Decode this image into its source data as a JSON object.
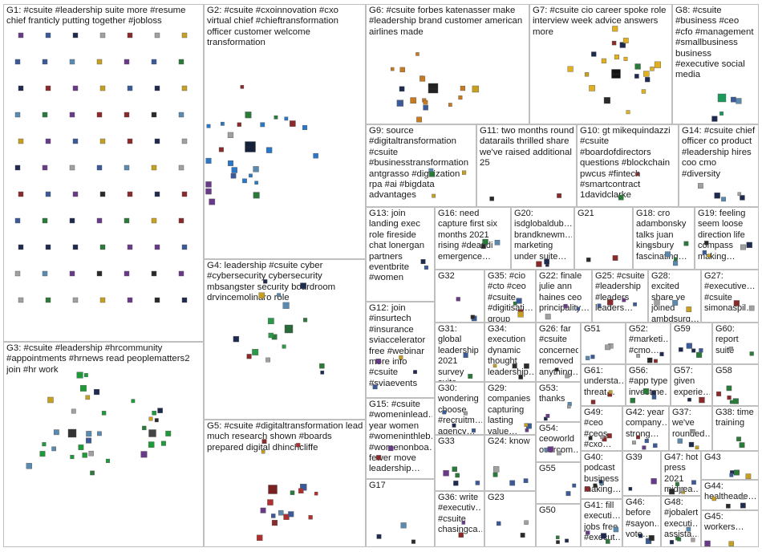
{
  "groups": [
    {
      "id": "G1",
      "label": "G1: #csuite #leadership suite more #resume chief franticly putting together #jobloss"
    },
    {
      "id": "G2",
      "label": "G2: #csuite #cxoinnovation #cxo virtual chief #chieftransformation officer customer welcome transformation"
    },
    {
      "id": "G6",
      "label": "G6: #csuite forbes katenasser make #leadership brand customer american airlines made"
    },
    {
      "id": "G7",
      "label": "G7: #csuite cio career spoke role interview week advice answers more"
    },
    {
      "id": "G8",
      "label": "G8: #csuite #business #ceo #cfo #management #smallbusiness business #executive social media"
    },
    {
      "id": "G9",
      "label": "G9: source #digitaltransformation #csuite #businesstransformation antgrasso #digitization rpa #ai #bigdata advantages"
    },
    {
      "id": "G11",
      "label": "G11: two months round datarails thrilled share we've raised additional 25"
    },
    {
      "id": "G10",
      "label": "G10: gt mikequindazzi #csuite #boardofdirectors questions #blockchain pwcus #fintech #smartcontract 1davidclarke"
    },
    {
      "id": "G14",
      "label": "G14: #csuite chief officer co product #leadership hires coo cmo #diversity"
    },
    {
      "id": "G13",
      "label": "G13: join landing exec role fireside chat lonergan partners eventbrite #women"
    },
    {
      "id": "G16",
      "label": "G16: need capture first six months 2021 rising #deandi emergence…"
    },
    {
      "id": "G20",
      "label": "G20: isdglobaldub… brandknewm… marketing under suite…"
    },
    {
      "id": "G21",
      "label": "G21"
    },
    {
      "id": "G18",
      "label": "G18: cro adambonsky talks juan kingsbury fascinating…"
    },
    {
      "id": "G19",
      "label": "G19: feeling seem loose direction life compass making…"
    },
    {
      "id": "G4",
      "label": "G4: leadership #csuite cyber #cybersecurity cybersecurity mbsangster security boardroom drvincemolinaro role"
    },
    {
      "id": "G32",
      "label": "G32"
    },
    {
      "id": "G35",
      "label": "G35: #cio #cto #ceo #csuite #digitisati… group"
    },
    {
      "id": "G22",
      "label": "G22: finale julie ann haines ceo principality…"
    },
    {
      "id": "G25",
      "label": "G25: #csuite #leadership #leaders leaders…"
    },
    {
      "id": "G28",
      "label": "G28: excited share ve joined ambdsurg…"
    },
    {
      "id": "G27",
      "label": "G27: #executive… #csuite simonaspil…"
    },
    {
      "id": "G12",
      "label": "G12: join #insurtech #insurance sviaccelerator free #webinar more info #csuite #sviaevents"
    },
    {
      "id": "G31",
      "label": "G31: global leadership 2021 survey suite…"
    },
    {
      "id": "G34",
      "label": "G34: execution dynamic thought leadership…"
    },
    {
      "id": "G26",
      "label": "G26: far #csuite concerned removed anything…"
    },
    {
      "id": "G51",
      "label": "G51"
    },
    {
      "id": "G52",
      "label": "G52: #marketi… #cmo…"
    },
    {
      "id": "G59",
      "label": "G59"
    },
    {
      "id": "G60",
      "label": "G60: report suite"
    },
    {
      "id": "G3",
      "label": "G3: #csuite #leadership #hrcommunity #appointments #hrnews read peoplematters2 join #hr work"
    },
    {
      "id": "G30",
      "label": "G30: wondering choose #recruitm… agency…"
    },
    {
      "id": "G29",
      "label": "G29: companies capturing lasting value…"
    },
    {
      "id": "G53",
      "label": "G53: thanks"
    },
    {
      "id": "G61",
      "label": "G61: understa… threat…"
    },
    {
      "id": "G56",
      "label": "G56: #app type investme…"
    },
    {
      "id": "G57",
      "label": "G57: given experie…"
    },
    {
      "id": "G58",
      "label": "G58"
    },
    {
      "id": "G15",
      "label": "G15: #csuite #womeninlead… year women #womeninthleb… #womenonboa… fewer move leadership…"
    },
    {
      "id": "G5",
      "label": "G5: #csuite #digitaltransformation lead much research shown #boards prepared digital dhinchcliffe"
    },
    {
      "id": "G33",
      "label": "G33"
    },
    {
      "id": "G24",
      "label": "G24: know"
    },
    {
      "id": "G54",
      "label": "G54: ceoworld overcom…"
    },
    {
      "id": "G49",
      "label": "G49: #ceo #ceos #cxo…"
    },
    {
      "id": "G42",
      "label": "G42: year company… strong…"
    },
    {
      "id": "G37",
      "label": "G37: we've rounded…"
    },
    {
      "id": "G38",
      "label": "G38: time training"
    },
    {
      "id": "G55",
      "label": "G55"
    },
    {
      "id": "G40",
      "label": "G40: podcast business making…"
    },
    {
      "id": "G39",
      "label": "G39"
    },
    {
      "id": "G47",
      "label": "G47: hot press 2021 midyea…"
    },
    {
      "id": "G43",
      "label": "G43"
    },
    {
      "id": "G44",
      "label": "G44: healtheade…"
    },
    {
      "id": "G17",
      "label": "G17"
    },
    {
      "id": "G36",
      "label": "G36: write #executiv… #csuite chasingca…"
    },
    {
      "id": "G23",
      "label": "G23"
    },
    {
      "id": "G50",
      "label": "G50"
    },
    {
      "id": "G41",
      "label": "G41: fill executi… jobs free #execut…"
    },
    {
      "id": "G46",
      "label": "G46: before #sayon… vote…"
    },
    {
      "id": "G48",
      "label": "G48: #jobalert executi… assista…"
    },
    {
      "id": "G45",
      "label": "G45: workers…"
    }
  ],
  "hub_labels": {
    "G2": "cxo",
    "G6": "forbes",
    "G7": "spoke"
  },
  "colors": {
    "border": "#bfbfbf",
    "text": "#1a1a1a",
    "edge": "#c8c8c8",
    "self_loop": "#e05858",
    "bridge_edge": "#b24646",
    "node_dark": "#15203a",
    "G2_accent": "#2a77c9",
    "G3_accent": "#1f9a3a",
    "G4_accent": "#2a9a4a",
    "G5_accent": "#b03030",
    "G6_accent": "#c77a1f",
    "G7_accent": "#e0b020",
    "G8_accent": "#1a9a5a"
  }
}
